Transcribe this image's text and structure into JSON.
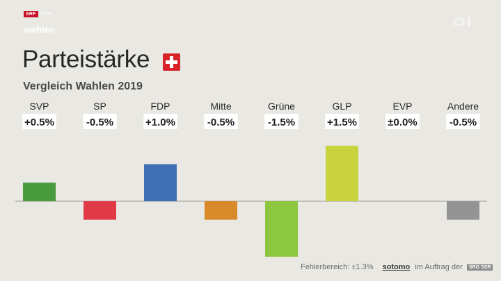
{
  "brand": {
    "srf": "SRF",
    "news": "news",
    "wahlen": "wahlen"
  },
  "header": {
    "title": "Parteistärke",
    "subtitle": "Vergleich Wahlen 2019"
  },
  "chart_data": {
    "type": "bar",
    "title": "Parteistärke",
    "subtitle": "Vergleich Wahlen 2019",
    "categories": [
      "SVP",
      "SP",
      "FDP",
      "Mitte",
      "Grüne",
      "GLP",
      "EVP",
      "Andere"
    ],
    "values": [
      0.5,
      -0.5,
      1.0,
      -0.5,
      -1.5,
      1.5,
      0.0,
      -0.5
    ],
    "value_labels": [
      "+0.5%",
      "-0.5%",
      "+1.0%",
      "-0.5%",
      "-1.5%",
      "+1.5%",
      "±0.0%",
      "-0.5%"
    ],
    "colors": [
      "#4a9a3e",
      "#e03a47",
      "#3f70b5",
      "#d88a2a",
      "#8dc63f",
      "#c8d33e",
      "#f0e04a",
      "#939393"
    ],
    "ylim": [
      -1.5,
      1.5
    ],
    "grid": false,
    "legend": "none"
  },
  "footer": {
    "error_margin": "Fehlerbereich: ±1.3%",
    "source": "sotomo",
    "commission": "im Auftrag der",
    "srgssr": "SRG SSR"
  }
}
